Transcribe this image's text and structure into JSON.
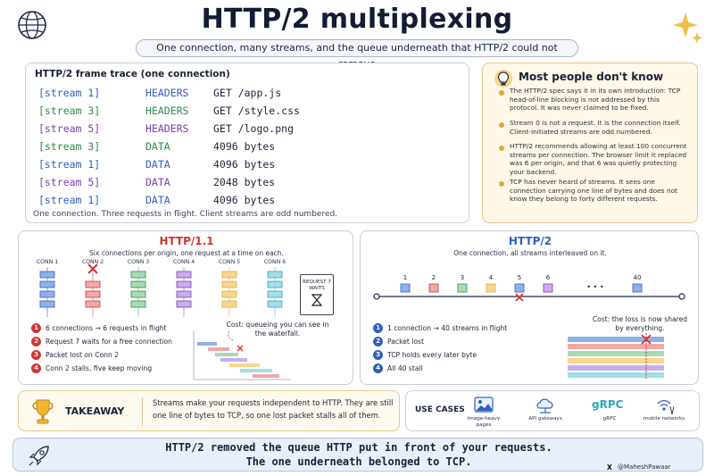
{
  "header": {
    "title": "HTTP/2 multiplexing",
    "subtitle": "One connection, many streams, and the queue underneath that HTTP/2 could not remove"
  },
  "trace": {
    "title": "HTTP/2 frame trace (one connection)",
    "rows": [
      {
        "stream": "[stream 1]",
        "type": "HEADERS",
        "value": "GET /app.js",
        "color": "#2f5fc0"
      },
      {
        "stream": "[stream 3]",
        "type": "HEADERS",
        "value": "GET /style.css",
        "color": "#2c8c4e"
      },
      {
        "stream": "[stream 5]",
        "type": "HEADERS",
        "value": "GET /logo.png",
        "color": "#7a3db0"
      },
      {
        "stream": "[stream 3]",
        "type": "DATA",
        "value": "4096 bytes",
        "color": "#2c8c4e"
      },
      {
        "stream": "[stream 1]",
        "type": "DATA",
        "value": "4096 bytes",
        "color": "#2f5fc0"
      },
      {
        "stream": "[stream 5]",
        "type": "DATA",
        "value": "2048 bytes",
        "color": "#7a3db0"
      },
      {
        "stream": "[stream 1]",
        "type": "DATA",
        "value": "4096 bytes",
        "color": "#2f5fc0"
      }
    ],
    "footnote": "One connection. Three requests in flight. Client streams are odd numbered."
  },
  "know": {
    "title": "Most people don't know",
    "items": [
      "The HTTP/2 spec says it in its own introduction: TCP head-of-line blocking is not addressed by this protocol. It was never claimed to be fixed.",
      "Stream 0 is not a request. It is the connection itself. Client-initiated streams are odd numbered.",
      "HTTP/2 recommends allowing at least 100 concurrent streams per connection. The browser limit it replaced was 6 per origin, and that 6 was quietly protecting your backend.",
      "TCP has never heard of streams. It sees one connection carrying one line of bytes and does not know they belong to forty different requests."
    ]
  },
  "http1": {
    "title": "HTTP/1.1",
    "subtitle": "Six connections per origin, one request at a time on each.",
    "conns": [
      "CONN 1",
      "CONN 2",
      "CONN 3",
      "CONN 4",
      "CONN 5",
      "CONN 6"
    ],
    "waits": "REQUEST 7 WAITS",
    "points": [
      {
        "n": "1",
        "text": "6 connections → 6 requests in flight"
      },
      {
        "n": "2",
        "text": "Request 7 waits for a free connection"
      },
      {
        "n": "3",
        "text": "Packet lost on Conn 2"
      },
      {
        "n": "4",
        "text": "Conn 2 stalls, five keep moving"
      }
    ],
    "cost": "Cost: queueing you can see in the waterfall."
  },
  "http2": {
    "title": "HTTP/2",
    "subtitle": "One connection, all streams interleaved on it.",
    "streams": [
      "1",
      "2",
      "3",
      "4",
      "5",
      "6",
      "40"
    ],
    "ellipsis": "• • •",
    "points": [
      {
        "n": "1",
        "text": "1 connection → 40 streams in flight"
      },
      {
        "n": "2",
        "text": "Packet lost"
      },
      {
        "n": "3",
        "text": "TCP holds every later byte"
      },
      {
        "n": "4",
        "text": "All 40 stall"
      }
    ],
    "cost": "Cost: the loss is now shared by everything."
  },
  "takeaway": {
    "label": "TAKEAWAY",
    "text": "Streams make your requests independent to HTTP. They are still one line of bytes to TCP, so one lost packet stalls all of them."
  },
  "use_cases": {
    "label": "USE CASES",
    "items": [
      "Image-heavy pages",
      "API gateways",
      "gRPC",
      "mobile networks"
    ],
    "grpc_logo": "gRPC"
  },
  "banner": {
    "line1": "HTTP/2 removed the queue HTTP put in front of your requests.",
    "line2": "The one underneath belonged to TCP."
  },
  "credit": {
    "x": "X",
    "handle": "@MaheshPawaar"
  },
  "colors": {
    "blue": "#2f5fc0",
    "red": "#d23535",
    "green": "#2c8c4e",
    "purple": "#7a3db0",
    "orange": "#e2a93a",
    "teal": "#2fa8b8"
  }
}
